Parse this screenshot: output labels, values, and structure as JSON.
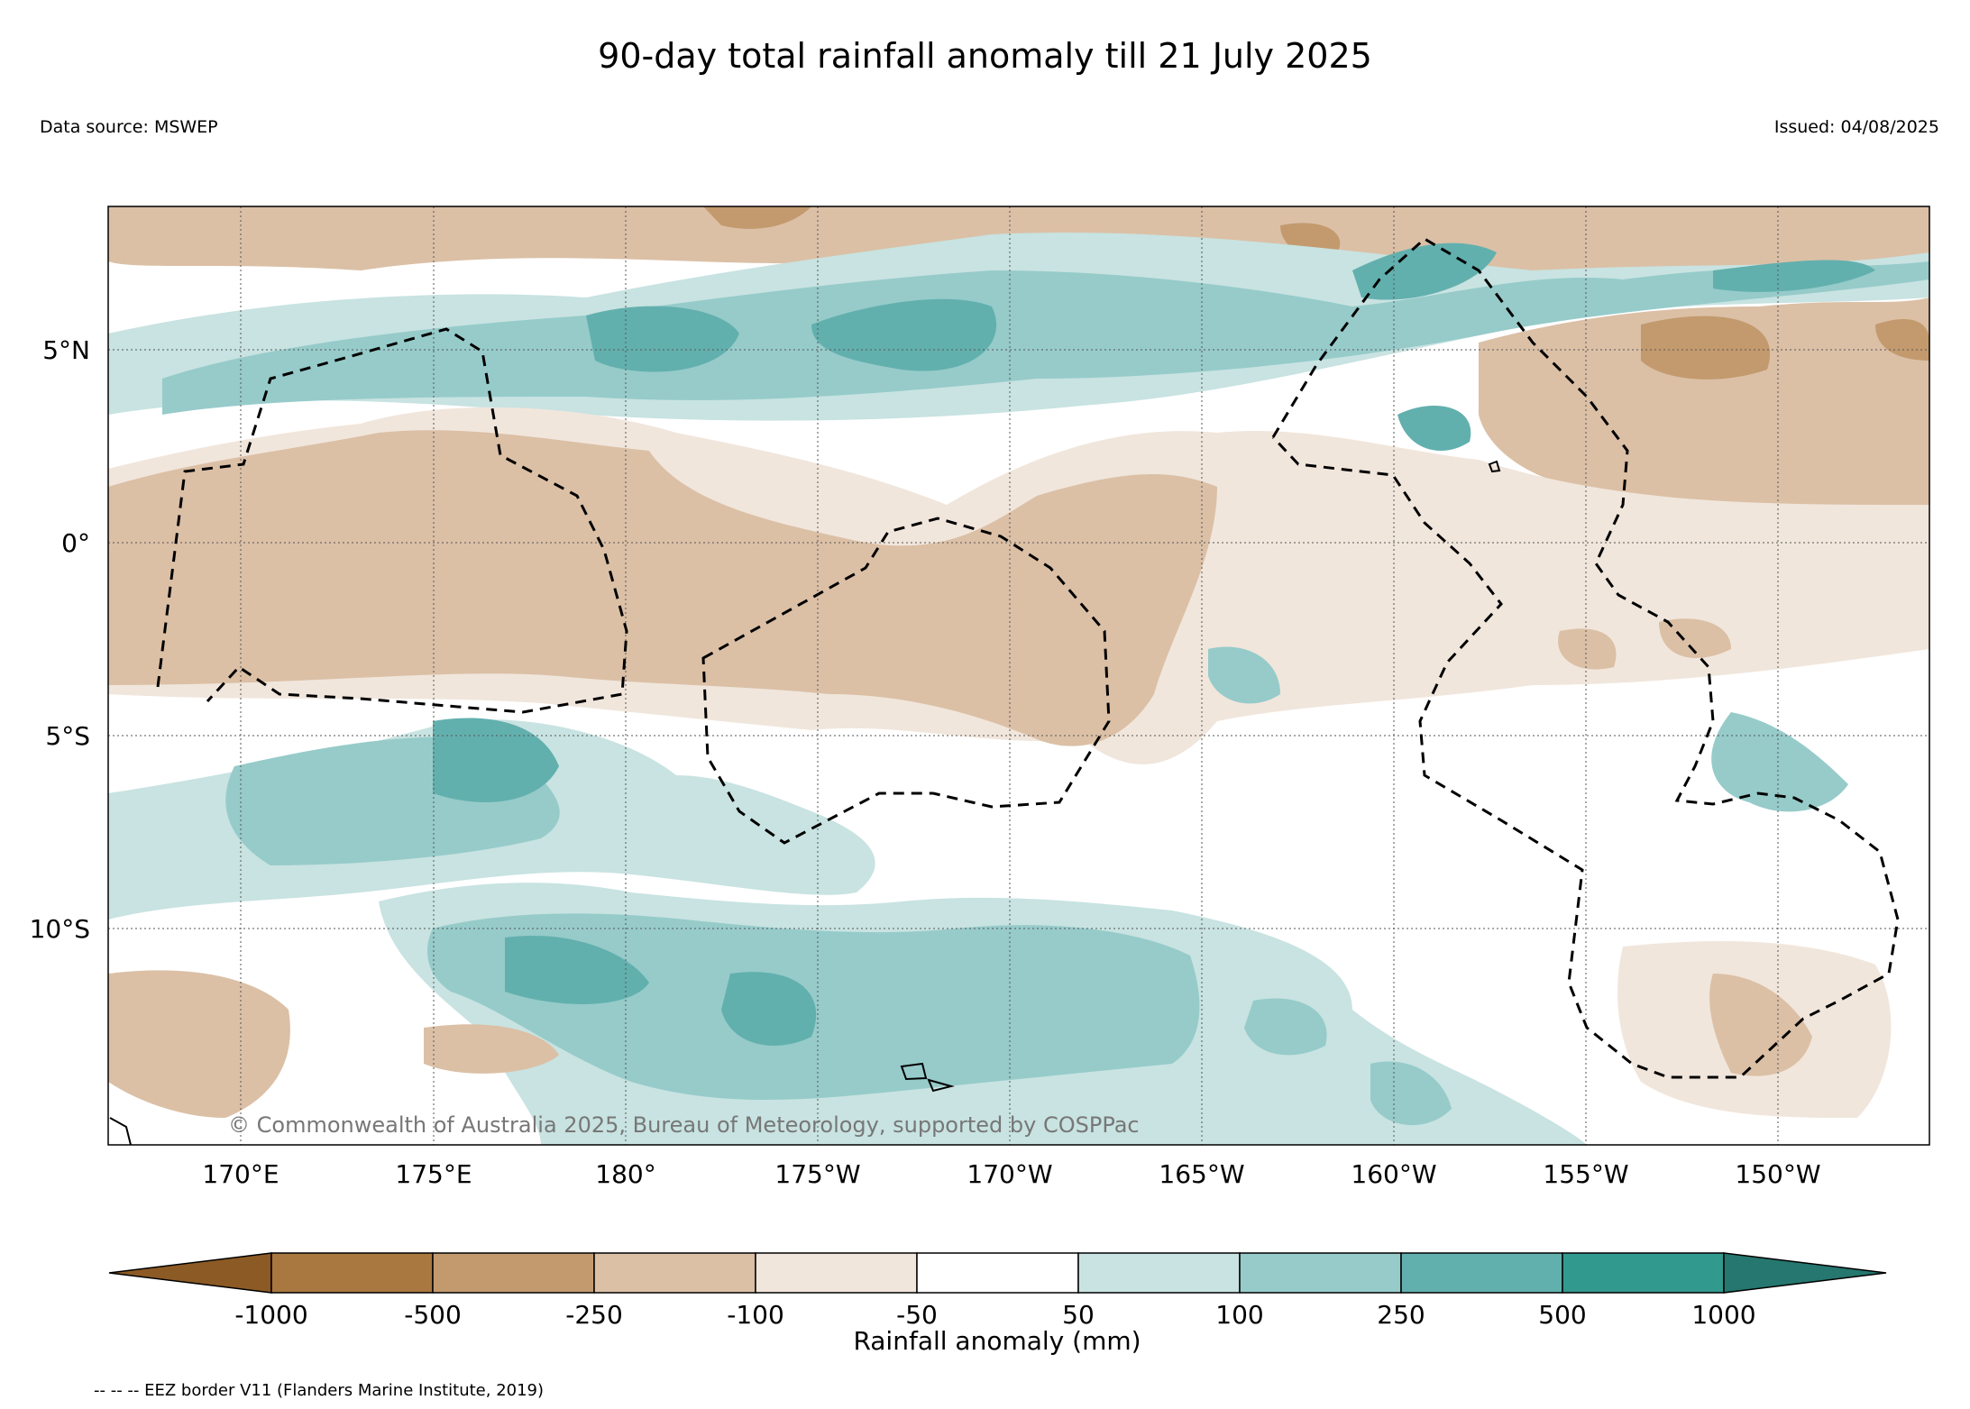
{
  "title": "90-day total rainfall anomaly till 21 July 2025",
  "data_source": "Data source: MSWEP",
  "issued": "Issued: 04/08/2025",
  "copyright": "© Commonwealth of Australia 2025, Bureau of Meteorology, supported by COSPPac",
  "map": {
    "lat_ticks": [
      "5°N",
      "0°",
      "5°S",
      "10°S"
    ],
    "lon_ticks": [
      "170°E",
      "175°E",
      "180°",
      "175°W",
      "170°W",
      "165°W",
      "160°W",
      "155°W",
      "150°W"
    ]
  },
  "colorbar": {
    "label": "Rainfall anomaly (mm)",
    "ticks": [
      "-1000",
      "-500",
      "-250",
      "-100",
      "-50",
      "50",
      "100",
      "250",
      "500",
      "1000"
    ],
    "colors": [
      "#8c5a24",
      "#a97740",
      "#c39a6e",
      "#dbc0a6",
      "#f1e6dc",
      "#ffffff",
      "#c8e3e1",
      "#96cbca",
      "#62b0ae",
      "#32998f",
      "#25776f"
    ]
  },
  "legend_note": "-- -- -- EEZ border V11 (Flanders Marine Institute, 2019)"
}
